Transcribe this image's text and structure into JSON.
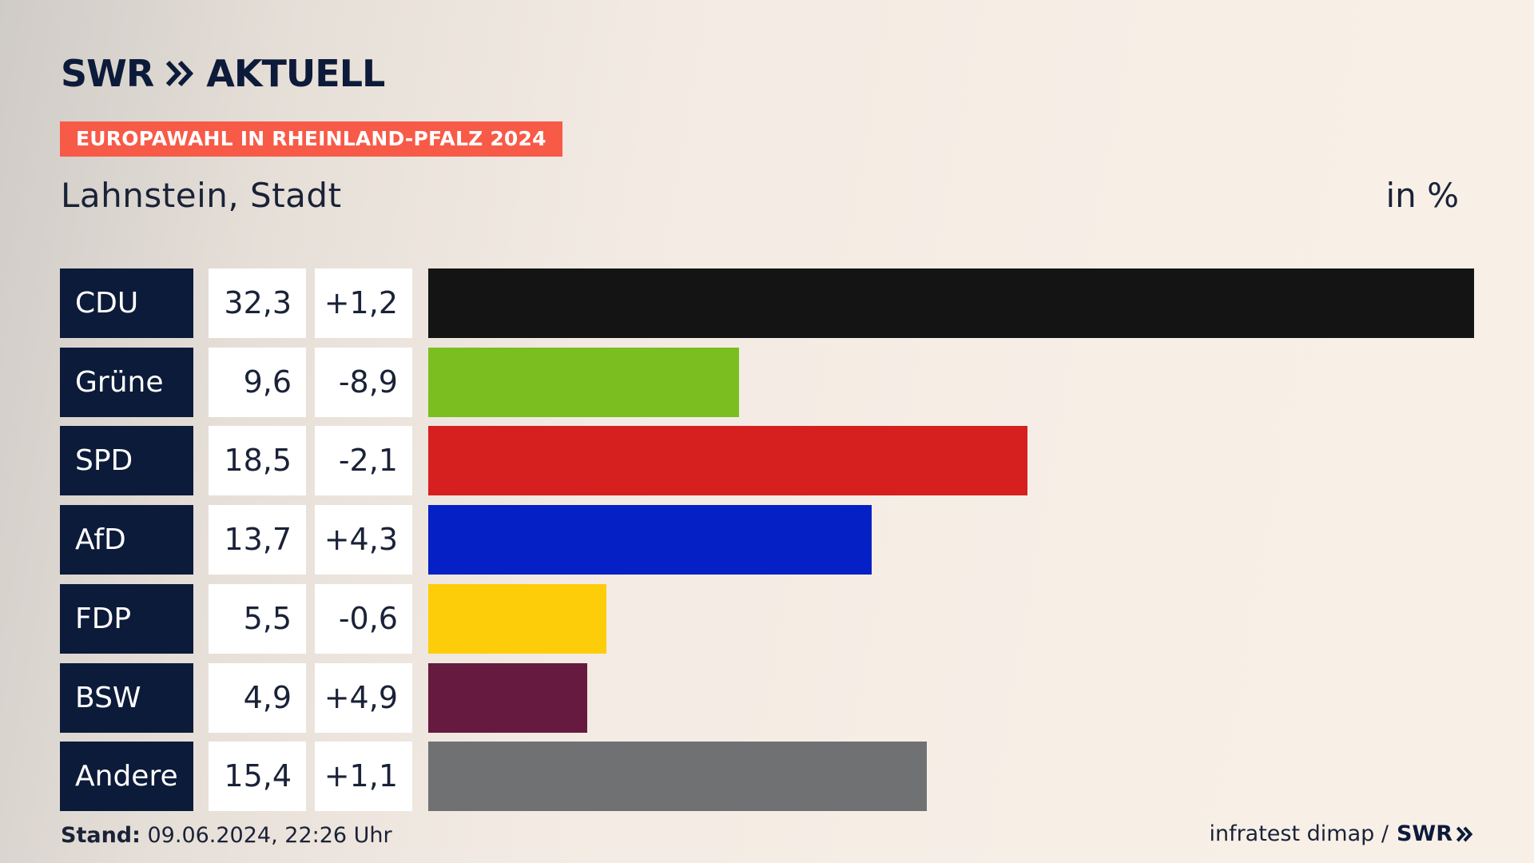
{
  "header": {
    "logo_swr": "SWR",
    "logo_aktuell": "AKTUELL",
    "tag": "EUROPAWAHL IN RHEINLAND-PFALZ 2024",
    "subtitle": "Lahnstein, Stadt",
    "unit": "in %"
  },
  "chart_data": {
    "type": "bar",
    "orientation": "horizontal",
    "title": "Lahnstein, Stadt",
    "unit": "in %",
    "categories": [
      "CDU",
      "Grüne",
      "SPD",
      "AfD",
      "FDP",
      "BSW",
      "Andere"
    ],
    "values": [
      32.3,
      9.6,
      18.5,
      13.7,
      5.5,
      4.9,
      15.4
    ],
    "value_labels": [
      "32,3",
      "9,6",
      "18,5",
      "13,7",
      "5,5",
      "4,9",
      "15,4"
    ],
    "change_labels": [
      "+1,2",
      "-8,9",
      "-2,1",
      "+4,3",
      "-0,6",
      "+4,9",
      "+1,1"
    ],
    "colors": [
      "#141414",
      "#7abe1f",
      "#d61f1f",
      "#0520c4",
      "#fecd0a",
      "#661a40",
      "#707172"
    ],
    "xlim": [
      0,
      32.3
    ]
  },
  "footer": {
    "stand_label": "Stand:",
    "stand_value": " 09.06.2024, 22:26 Uhr",
    "source": "infratest dimap /",
    "source_brand": "SWR"
  }
}
